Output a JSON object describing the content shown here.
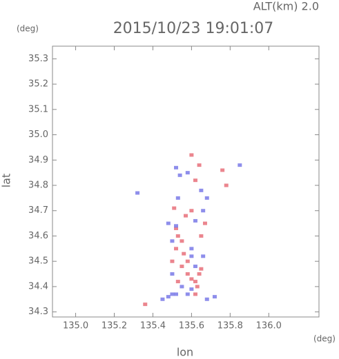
{
  "chart_data": {
    "type": "scatter",
    "title": "2015/10/23 19:01:07",
    "subtitle": "ALT(km) 2.0",
    "x_label": "lon",
    "x_unit": "(deg)",
    "y_label": "lat",
    "y_unit": "(deg)",
    "xlim": [
      134.88,
      136.26
    ],
    "ylim": [
      34.28,
      35.35
    ],
    "xticks": [
      {
        "value": 135.0,
        "label": "135.0"
      },
      {
        "value": 135.2,
        "label": "135.2"
      },
      {
        "value": 135.4,
        "label": "135.4"
      },
      {
        "value": 135.6,
        "label": "135.6"
      },
      {
        "value": 135.8,
        "label": "135.8"
      },
      {
        "value": 136.0,
        "label": "136.0"
      }
    ],
    "yticks": [
      {
        "value": 34.3,
        "label": "34.3"
      },
      {
        "value": 34.4,
        "label": "34.4"
      },
      {
        "value": 34.5,
        "label": "34.5"
      },
      {
        "value": 34.6,
        "label": "34.6"
      },
      {
        "value": 34.7,
        "label": "34.7"
      },
      {
        "value": 34.8,
        "label": "34.8"
      },
      {
        "value": 34.9,
        "label": "34.9"
      },
      {
        "value": 35.0,
        "label": "35.0"
      },
      {
        "value": 35.1,
        "label": "35.1"
      },
      {
        "value": 35.2,
        "label": "35.2"
      },
      {
        "value": 35.3,
        "label": "35.3"
      }
    ],
    "series": [
      {
        "color": "#e8707a",
        "x": [
          135.36,
          135.52,
          135.53,
          135.55,
          135.52,
          135.55,
          135.58,
          135.6,
          135.62,
          135.63,
          135.58,
          135.5,
          135.53,
          135.62,
          135.65,
          135.57,
          135.6,
          135.65,
          135.67,
          135.62,
          135.6,
          135.64,
          135.78,
          135.76,
          135.51,
          135.56,
          135.64
        ],
        "values": [
          34.33,
          34.63,
          34.6,
          34.58,
          34.55,
          34.48,
          34.45,
          34.43,
          34.42,
          34.4,
          34.5,
          34.5,
          34.42,
          34.37,
          34.47,
          34.68,
          34.7,
          34.6,
          34.65,
          34.82,
          34.92,
          34.88,
          34.8,
          34.86,
          34.71,
          34.53,
          34.45
        ]
      },
      {
        "color": "#7a7ae8",
        "x": [
          135.72,
          135.68,
          135.45,
          135.48,
          135.5,
          135.52,
          135.58,
          135.6,
          135.55,
          135.62,
          135.6,
          135.5,
          135.52,
          135.48,
          135.62,
          135.66,
          135.6,
          135.66,
          135.85,
          135.54,
          135.52,
          135.58,
          135.65,
          135.68,
          135.32,
          135.53,
          135.5
        ],
        "values": [
          34.36,
          34.35,
          34.35,
          34.36,
          34.37,
          34.37,
          34.37,
          34.39,
          34.4,
          34.48,
          34.52,
          34.45,
          34.64,
          34.65,
          34.66,
          34.7,
          34.55,
          34.52,
          34.88,
          34.84,
          34.87,
          34.85,
          34.78,
          34.75,
          34.77,
          34.75,
          34.58
        ]
      }
    ]
  }
}
